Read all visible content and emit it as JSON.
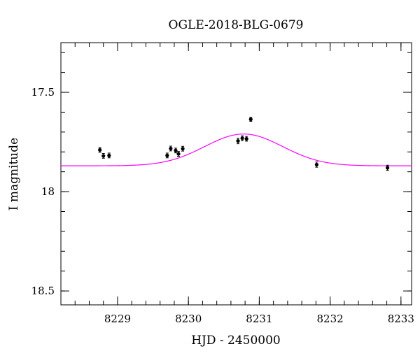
{
  "chart_data": {
    "type": "scatter",
    "title": "OGLE-2018-BLG-0679",
    "xlabel": "HJD - 2450000",
    "ylabel": "I magnitude",
    "xlim": [
      8228.2,
      8233.15
    ],
    "ylim": [
      18.57,
      17.25
    ],
    "y_inverted": true,
    "x_major_ticks": [
      8229,
      8230,
      8231,
      8232,
      8233
    ],
    "x_minor_step": 0.2,
    "y_major_ticks": [
      17.5,
      18,
      18.5
    ],
    "y_minor_step": 0.1,
    "x_tick_labels": [
      "8229",
      "8230",
      "8231",
      "8232",
      "8233"
    ],
    "y_tick_labels": [
      "17.5",
      "18",
      "18.5"
    ],
    "grid": false,
    "series": [
      {
        "kind": "points",
        "color": "#000000",
        "points": [
          {
            "x": 8228.75,
            "y": 17.79,
            "err": 0.012
          },
          {
            "x": 8228.8,
            "y": 17.82,
            "err": 0.012
          },
          {
            "x": 8228.88,
            "y": 17.818,
            "err": 0.012
          },
          {
            "x": 8229.7,
            "y": 17.818,
            "err": 0.012
          },
          {
            "x": 8229.75,
            "y": 17.783,
            "err": 0.012
          },
          {
            "x": 8229.82,
            "y": 17.793,
            "err": 0.012
          },
          {
            "x": 8229.86,
            "y": 17.81,
            "err": 0.012
          },
          {
            "x": 8229.92,
            "y": 17.784,
            "err": 0.012
          },
          {
            "x": 8230.7,
            "y": 17.745,
            "err": 0.014
          },
          {
            "x": 8230.76,
            "y": 17.731,
            "err": 0.012
          },
          {
            "x": 8230.82,
            "y": 17.734,
            "err": 0.012
          },
          {
            "x": 8230.88,
            "y": 17.636,
            "err": 0.01
          },
          {
            "x": 8231.81,
            "y": 17.864,
            "err": 0.013
          },
          {
            "x": 8232.81,
            "y": 17.88,
            "err": 0.013
          }
        ]
      },
      {
        "kind": "model",
        "color": "#ff00ff",
        "baseline": 17.87,
        "peak_x": 8230.78,
        "peak_y": 17.71,
        "width": 0.55
      }
    ]
  }
}
